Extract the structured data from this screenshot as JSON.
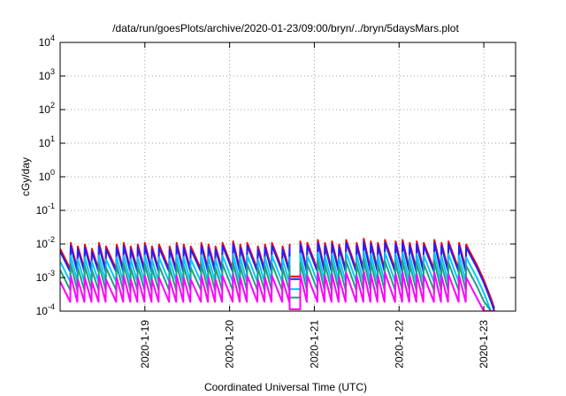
{
  "chart_data": {
    "type": "line",
    "title": "/data/run/goesPlots/archive/2020-01-23/09:00/bryn/../bryn/5daysMars.plot",
    "xlabel": "Coordinated Universal Time (UTC)",
    "ylabel": "cGy/day",
    "yscale": "log",
    "ylim": [
      0.0001,
      10000
    ],
    "xlim": [
      "2020-01-18 00:00",
      "2020-01-23 09:00"
    ],
    "grid": true,
    "y_ticks": [
      {
        "base": "10",
        "exp": "-4"
      },
      {
        "base": "10",
        "exp": "-3"
      },
      {
        "base": "10",
        "exp": "-2"
      },
      {
        "base": "10",
        "exp": "-1"
      },
      {
        "base": "10",
        "exp": "0"
      },
      {
        "base": "10",
        "exp": "1"
      },
      {
        "base": "10",
        "exp": "2"
      },
      {
        "base": "10",
        "exp": "3"
      },
      {
        "base": "10",
        "exp": "4"
      }
    ],
    "x_ticks": [
      {
        "label": "2020-1-19",
        "t": "2020-01-19"
      },
      {
        "label": "2020-1-20",
        "t": "2020-01-20"
      },
      {
        "label": "2020-1-21",
        "t": "2020-01-21"
      },
      {
        "label": "2020-1-22",
        "t": "2020-01-22"
      },
      {
        "label": "2020-1-23",
        "t": "2020-01-23"
      }
    ],
    "series_style": [
      {
        "color": "#ff0000",
        "offset_decades": 0.08
      },
      {
        "color": "#2020ff",
        "offset_decades": 0.0
      },
      {
        "color": "#00c8ff",
        "offset_decades": -0.3
      },
      {
        "color": "#20a080",
        "offset_decades": -0.55
      },
      {
        "color": "#ff00ff",
        "offset_decades": -0.9
      }
    ],
    "cycle": {
      "peak_times": [
        "2020-01-18 00:00",
        "2020-01-18 03:00",
        "2020-01-18 05:00",
        "2020-01-18 07:00",
        "2020-01-18 09:00",
        "2020-01-18 11:00",
        "2020-01-18 13:00",
        "2020-01-18 16:00",
        "2020-01-18 18:00",
        "2020-01-18 20:00",
        "2020-01-18 22:00",
        "2020-01-19 00:00",
        "2020-01-19 02:00",
        "2020-01-19 04:00",
        "2020-01-19 07:00",
        "2020-01-19 09:00",
        "2020-01-19 11:00",
        "2020-01-19 13:00",
        "2020-01-19 16:00",
        "2020-01-19 18:00",
        "2020-01-19 20:00",
        "2020-01-19 22:00",
        "2020-01-20 01:00",
        "2020-01-20 03:00",
        "2020-01-20 05:00",
        "2020-01-20 08:00",
        "2020-01-20 10:00",
        "2020-01-20 12:00",
        "2020-01-20 15:00",
        "2020-01-20 17:00",
        "2020-01-20 20:00",
        "2020-01-20 22:00",
        "2020-01-21 01:00",
        "2020-01-21 03:00",
        "2020-01-21 05:00",
        "2020-01-21 07:00",
        "2020-01-21 09:00",
        "2020-01-21 12:00",
        "2020-01-21 14:00",
        "2020-01-21 16:00",
        "2020-01-21 18:00",
        "2020-01-21 20:00",
        "2020-01-21 23:00",
        "2020-01-22 01:00",
        "2020-01-22 03:00",
        "2020-01-22 05:00",
        "2020-01-22 07:00",
        "2020-01-22 10:00",
        "2020-01-22 12:00",
        "2020-01-22 14:00",
        "2020-01-22 17:00",
        "2020-01-22 19:00"
      ],
      "peak_values": [
        0.006,
        0.009,
        0.007,
        0.008,
        0.006,
        0.009,
        0.007,
        0.008,
        0.009,
        0.007,
        0.008,
        0.009,
        0.007,
        0.008,
        0.007,
        0.009,
        0.008,
        0.007,
        0.009,
        0.008,
        0.007,
        0.009,
        0.01,
        0.008,
        0.009,
        0.007,
        0.008,
        0.009,
        0.007,
        0.008,
        0.01,
        0.009,
        0.011,
        0.009,
        0.01,
        0.008,
        0.011,
        0.009,
        0.012,
        0.01,
        0.009,
        0.011,
        0.01,
        0.011,
        0.009,
        0.01,
        0.009,
        0.011,
        0.009,
        0.01,
        0.009,
        0.008
      ],
      "trough_value": 0.0015,
      "gap": {
        "start": "2020-01-20 17:00",
        "end": "2020-01-20 20:00",
        "value": 0.0009
      },
      "tail": [
        {
          "t": "2020-01-22 20:00",
          "v": 0.005
        },
        {
          "t": "2020-01-22 22:00",
          "v": 0.002
        },
        {
          "t": "2020-01-23 00:00",
          "v": 0.0007
        },
        {
          "t": "2020-01-23 02:00",
          "v": 0.0002
        },
        {
          "t": "2020-01-23 03:00",
          "v": 0.0001
        }
      ]
    }
  }
}
